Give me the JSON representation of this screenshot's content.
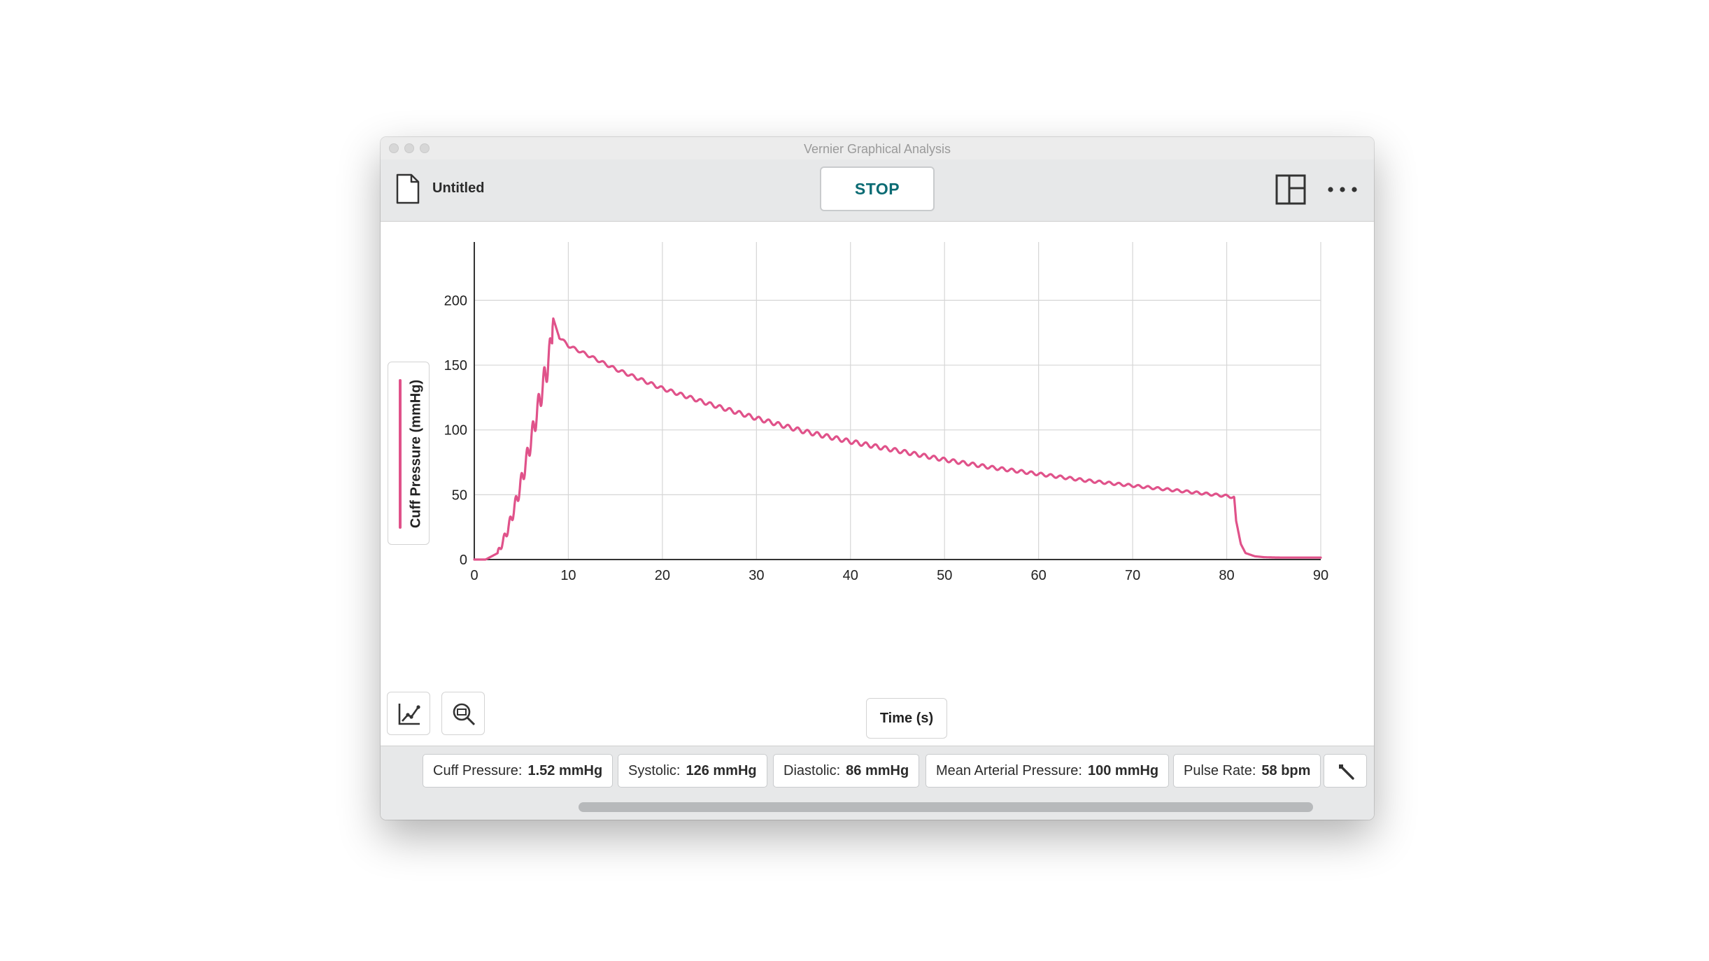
{
  "window": {
    "title": "Vernier Graphical Analysis"
  },
  "toolbar": {
    "file_name": "Untitled",
    "stop_label": "STOP",
    "icons": {
      "file": "document-icon",
      "layout": "layout-panels-icon",
      "more": "more-options-icon"
    }
  },
  "graph": {
    "tools": [
      {
        "name": "graph-tools-button",
        "icon": "graph-line-icon"
      },
      {
        "name": "zoom-button",
        "icon": "zoom-icon"
      }
    ]
  },
  "chart_data": {
    "type": "line",
    "xlabel": "Time (s)",
    "ylabel": "Cuff Pressure (mmHg)",
    "xlim": [
      0,
      90
    ],
    "ylim": [
      0,
      245
    ],
    "xticks": [
      0,
      10,
      20,
      30,
      40,
      50,
      60,
      70,
      80,
      90
    ],
    "yticks": [
      0,
      50,
      100,
      150,
      200
    ],
    "grid": true,
    "series": [
      {
        "color": "#e0528a",
        "x": [
          0,
          1.2,
          2.5,
          3.0,
          3.6,
          4.2,
          4.8,
          5.4,
          6.0,
          6.6,
          7.2,
          7.8,
          8.1,
          8.4,
          9.0,
          10,
          12,
          15,
          20,
          25,
          30,
          35,
          40,
          45,
          50,
          55,
          60,
          65,
          70,
          75,
          80,
          80.8,
          81.0,
          81.5,
          82,
          83,
          84,
          85,
          86,
          88,
          90
        ],
        "y": [
          0,
          0,
          5,
          13,
          24,
          38,
          54,
          72,
          91,
          111,
          131,
          150,
          162,
          186,
          172,
          165,
          158,
          147,
          132,
          120,
          109,
          99,
          91,
          84,
          77,
          71,
          66,
          61,
          57,
          53,
          49,
          48,
          30,
          12,
          5,
          2.5,
          1.8,
          1.6,
          1.5,
          1.5,
          1.5
        ]
      }
    ],
    "oscillations": {
      "amplitude_mmHg": 1.5,
      "start_s": 9,
      "end_s": 80.8,
      "pulse_rate_bpm": 58
    }
  },
  "meters": [
    {
      "label": "Cuff Pressure:",
      "value": "1.52 mmHg"
    },
    {
      "label": "Systolic:",
      "value": "126 mmHg"
    },
    {
      "label": "Diastolic:",
      "value": "86 mmHg"
    },
    {
      "label": "Mean Arterial Pressure:",
      "value": "100 mmHg"
    },
    {
      "label": "Pulse Rate:",
      "value": "58 bpm"
    }
  ],
  "meter_settings_icon": "wrench-icon",
  "colors": {
    "accent": "#0b6b73",
    "trace": "#e0528a",
    "toolbar": "#e7e8e9"
  }
}
